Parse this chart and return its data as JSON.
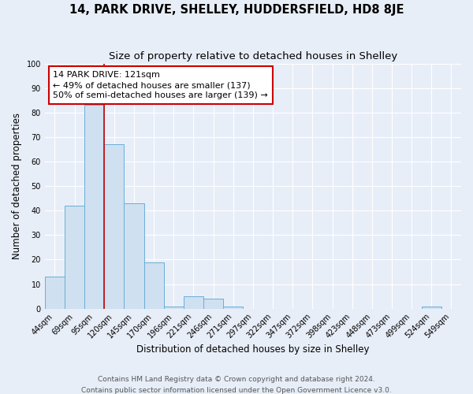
{
  "title": "14, PARK DRIVE, SHELLEY, HUDDERSFIELD, HD8 8JE",
  "subtitle": "Size of property relative to detached houses in Shelley",
  "xlabel": "Distribution of detached houses by size in Shelley",
  "ylabel": "Number of detached properties",
  "footer_line1": "Contains HM Land Registry data © Crown copyright and database right 2024.",
  "footer_line2": "Contains public sector information licensed under the Open Government Licence v3.0.",
  "bin_labels": [
    "44sqm",
    "69sqm",
    "95sqm",
    "120sqm",
    "145sqm",
    "170sqm",
    "196sqm",
    "221sqm",
    "246sqm",
    "271sqm",
    "297sqm",
    "322sqm",
    "347sqm",
    "372sqm",
    "398sqm",
    "423sqm",
    "448sqm",
    "473sqm",
    "499sqm",
    "524sqm",
    "549sqm"
  ],
  "bar_values": [
    13,
    42,
    83,
    67,
    43,
    19,
    1,
    5,
    4,
    1,
    0,
    0,
    0,
    0,
    0,
    0,
    0,
    0,
    0,
    1,
    0
  ],
  "bar_color": "#cfe0f1",
  "bar_edge_color": "#6aaed6",
  "bar_edge_width": 0.7,
  "vline_color": "#cc0000",
  "vline_index": 3,
  "annotation_line1": "14 PARK DRIVE: 121sqm",
  "annotation_line2": "← 49% of detached houses are smaller (137)",
  "annotation_line3": "50% of semi-detached houses are larger (139) →",
  "annotation_box_facecolor": "white",
  "annotation_box_edgecolor": "#cc0000",
  "ylim": [
    0,
    100
  ],
  "yticks": [
    0,
    10,
    20,
    30,
    40,
    50,
    60,
    70,
    80,
    90,
    100
  ],
  "background_color": "#e8eef8",
  "grid_color": "white",
  "title_fontsize": 10.5,
  "subtitle_fontsize": 9.5,
  "axis_label_fontsize": 8.5,
  "tick_fontsize": 7,
  "annotation_fontsize": 8,
  "footer_fontsize": 6.5
}
